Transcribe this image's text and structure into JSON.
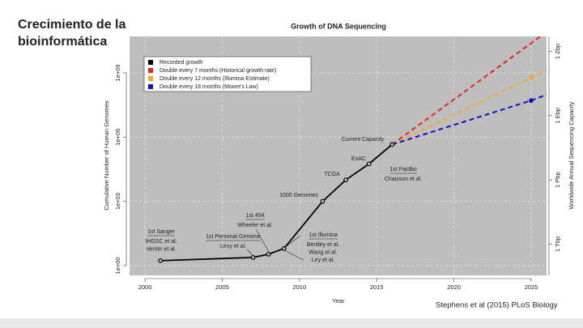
{
  "slide": {
    "title_lines": [
      "Crecimiento de la",
      "bioinformática"
    ],
    "citation": "Stephens et al (2015) PLoS Biology"
  },
  "chart_data": {
    "type": "line",
    "title": "Growth of DNA Sequencing",
    "x_label": "Year",
    "y_label": "Cumulative Number of Human Genomes",
    "y2_label": "Worldwide Annual Sequencing Capacity",
    "log": true,
    "grid": true,
    "legend": "top-left",
    "xlim": [
      1999,
      2026
    ],
    "xticks": [
      2000,
      2005,
      2010,
      2015,
      2020,
      2025
    ],
    "ylim": [
      0.35,
      50000000000
    ],
    "yticks": [
      {
        "value": 1,
        "label": "1e+00"
      },
      {
        "value": 1000,
        "label": "1e+03"
      },
      {
        "value": 1000000,
        "label": "1e+06"
      },
      {
        "value": 1000000000,
        "label": "1e+09"
      }
    ],
    "y2lim": [
      35000000000,
      5e+21
    ],
    "y2ticks": [
      {
        "value": 1000000000000.0,
        "label": "1 Tbp"
      },
      {
        "value": 1000000000000000.0,
        "label": "1 Pbp"
      },
      {
        "value": 1e+18,
        "label": "1 Ebp"
      },
      {
        "value": 1e+21,
        "label": "1 Zbp"
      }
    ],
    "series": [
      {
        "name": "Recorded growth",
        "color": "#000000",
        "style": "solid",
        "markers": "all",
        "x": [
          2001,
          2007,
          2008,
          2009,
          2011.5,
          2013,
          2014.5,
          2016
        ],
        "values": [
          1.7,
          2.4,
          3.4,
          6.3,
          1000,
          10000,
          56000,
          450000
        ]
      },
      {
        "name": "Double every 7 months (Historical growth rate)",
        "color": "#e8231c",
        "style": "dashed",
        "markers": "none",
        "x": [
          2016,
          2025.6
        ],
        "values": [
          450000,
          50000000000
        ]
      },
      {
        "name": "Double every 12 months (Illumina Estimate)",
        "color": "#f0a830",
        "style": "dashed",
        "markers": "interior",
        "x": [
          2016,
          2025,
          2026
        ],
        "values": [
          450000,
          590000000,
          1300000000
        ]
      },
      {
        "name": "Double every 18 months (Moore's Law)",
        "color": "#1414b8",
        "style": "dashed",
        "markers": "interior",
        "x": [
          2016,
          2025,
          2026
        ],
        "values": [
          450000,
          51000000,
          95000000
        ]
      }
    ],
    "annotations": [
      {
        "title": "1st Sanger",
        "authors": [
          "IHGSC et al.",
          "Venter et al."
        ]
      },
      {
        "title": "1st Personal Genome",
        "authors": [
          "Levy et al."
        ]
      },
      {
        "title": "1st 454",
        "authors": [
          "Wheeler et al."
        ]
      },
      {
        "title": "1st Illumina",
        "authors": [
          "Bentley et al.",
          "Wang et al.",
          "Ley et al."
        ]
      },
      {
        "title": "1000 Genomes",
        "authors": []
      },
      {
        "title": "TCGA",
        "authors": []
      },
      {
        "title": "ExAC",
        "authors": []
      },
      {
        "title": "1st PacBio",
        "authors": [
          "Chaisson et al."
        ]
      },
      {
        "title": "Current Capacity",
        "authors": []
      }
    ]
  }
}
